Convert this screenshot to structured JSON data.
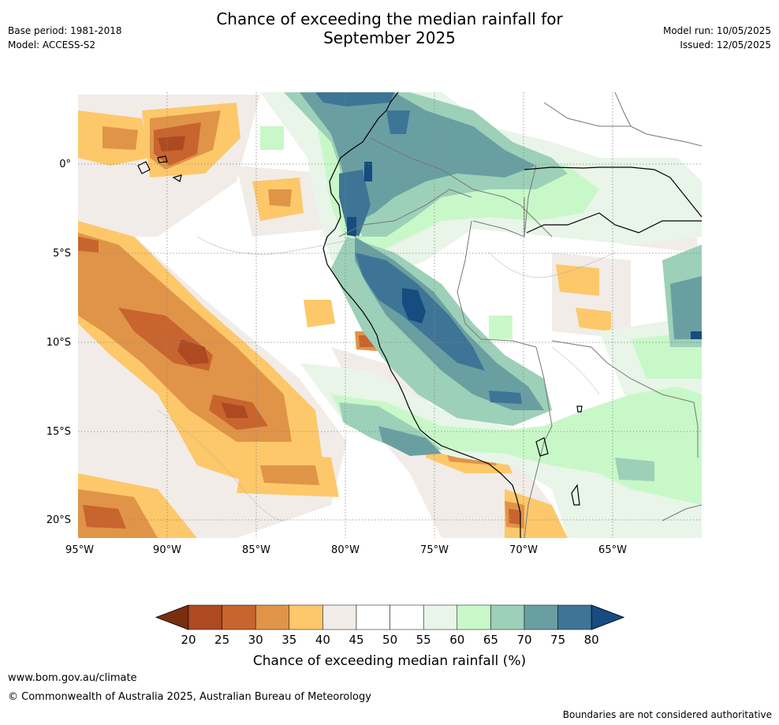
{
  "header": {
    "base_period": "Base period: 1981-2018",
    "model": "Model: ACCESS-S2",
    "title_line1": "Chance of exceeding the median rainfall for",
    "title_line2": "September 2025",
    "model_run": "Model run: 10/05/2025",
    "issued": "Issued: 12/05/2025"
  },
  "map": {
    "lat_labels": [
      "0°",
      "5°S",
      "10°S",
      "15°S",
      "20°S"
    ],
    "lon_labels": [
      "95°W",
      "90°W",
      "85°W",
      "80°W",
      "75°W",
      "70°W",
      "65°W"
    ]
  },
  "legend": {
    "ticks": [
      "20",
      "25",
      "30",
      "35",
      "40",
      "45",
      "50",
      "55",
      "60",
      "65",
      "70",
      "75",
      "80"
    ],
    "label": "Chance of exceeding median rainfall (%)",
    "colors": [
      "#7a2e10",
      "#ae4a22",
      "#c8642e",
      "#e09448",
      "#fdc86a",
      "#f1ece8",
      "#ffffff",
      "#ffffff",
      "#e8f5e8",
      "#c8f8c8",
      "#9dd0b8",
      "#6a9fa2",
      "#3e7596",
      "#164c80"
    ]
  },
  "footer": {
    "website": "www.bom.gov.au/climate",
    "copyright": "© Commonwealth of Australia 2025, Australian Bureau of Meteorology",
    "disclaimer": "Boundaries are not considered authoritative"
  }
}
